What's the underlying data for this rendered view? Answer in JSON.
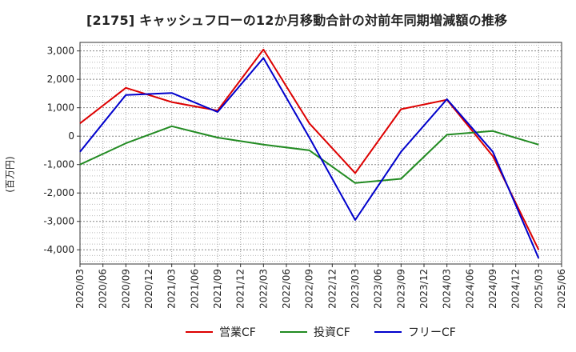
{
  "title": "[2175]  キャッシュフローの12か月移動合計の対前年同期増減額の推移",
  "chart_data": {
    "type": "line",
    "ylabel": "(百万円)",
    "ylim": [
      -4500,
      3300
    ],
    "yticks": [
      3000,
      2000,
      1000,
      0,
      -1000,
      -2000,
      -3000,
      -4000
    ],
    "ytick_labels": [
      "3,000",
      "2,000",
      "1,000",
      "0",
      "-1,000",
      "-2,000",
      "-3,000",
      "-4,000"
    ],
    "categories": [
      "2020/03",
      "2020/06",
      "2020/09",
      "2020/12",
      "2021/03",
      "2021/06",
      "2021/09",
      "2021/12",
      "2022/03",
      "2022/06",
      "2022/09",
      "2022/12",
      "2023/03",
      "2023/06",
      "2023/09",
      "2023/12",
      "2024/03",
      "2024/06",
      "2024/09",
      "2024/12",
      "2025/03",
      "2025/06"
    ],
    "grid": true,
    "legend_position": "bottom",
    "series": [
      {
        "name": "営業CF",
        "color": "#dd0000",
        "values": [
          450,
          null,
          1700,
          null,
          1200,
          null,
          900,
          null,
          3050,
          null,
          450,
          null,
          -1300,
          null,
          950,
          null,
          1280,
          null,
          -700,
          null,
          -4000,
          null
        ]
      },
      {
        "name": "投資CF",
        "color": "#228b22",
        "values": [
          -1000,
          null,
          -250,
          null,
          350,
          null,
          -50,
          null,
          -300,
          null,
          -500,
          null,
          -1650,
          null,
          -1500,
          null,
          50,
          null,
          180,
          null,
          -300,
          null
        ]
      },
      {
        "name": "フリーCF",
        "color": "#0000cc",
        "values": [
          -550,
          null,
          1450,
          null,
          1520,
          null,
          850,
          null,
          2750,
          null,
          -50,
          null,
          -2950,
          null,
          -550,
          null,
          1300,
          null,
          -550,
          null,
          -4300,
          null
        ]
      }
    ]
  }
}
